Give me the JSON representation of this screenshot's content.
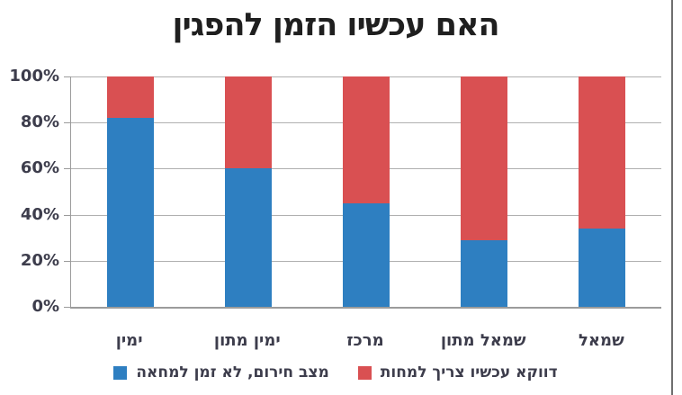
{
  "chart_data": {
    "type": "bar",
    "stacked": true,
    "title": "האם עכשיו הזמן להפגין",
    "xlabel": "",
    "ylabel": "",
    "categories": [
      "ימין",
      "ימין מתון",
      "מרכז",
      "שמאל מתון",
      "שמאל"
    ],
    "series": [
      {
        "name": "מצב חירום, לא זמן למחאה",
        "color": "#2E7FC1",
        "values": [
          82,
          60,
          45,
          29,
          34
        ]
      },
      {
        "name": "דווקא עכשיו צריך למחות",
        "color": "#D95052",
        "values": [
          18,
          40,
          55,
          71,
          66
        ]
      }
    ],
    "y_ticks": [
      "0%",
      "20%",
      "40%",
      "60%",
      "80%",
      "100%"
    ],
    "ylim": [
      0,
      100
    ],
    "grid": true,
    "legend_position": "bottom"
  },
  "colors": {
    "background": "#ffffff",
    "title": "#1f1f1f",
    "axis_labels": "#3d3d4c",
    "gridline": "#b0b0b0",
    "axis_line": "#9b9b9b",
    "frame_line": "#6f6f6f",
    "series_blue": "#2E7FC1",
    "series_red": "#D95052"
  }
}
